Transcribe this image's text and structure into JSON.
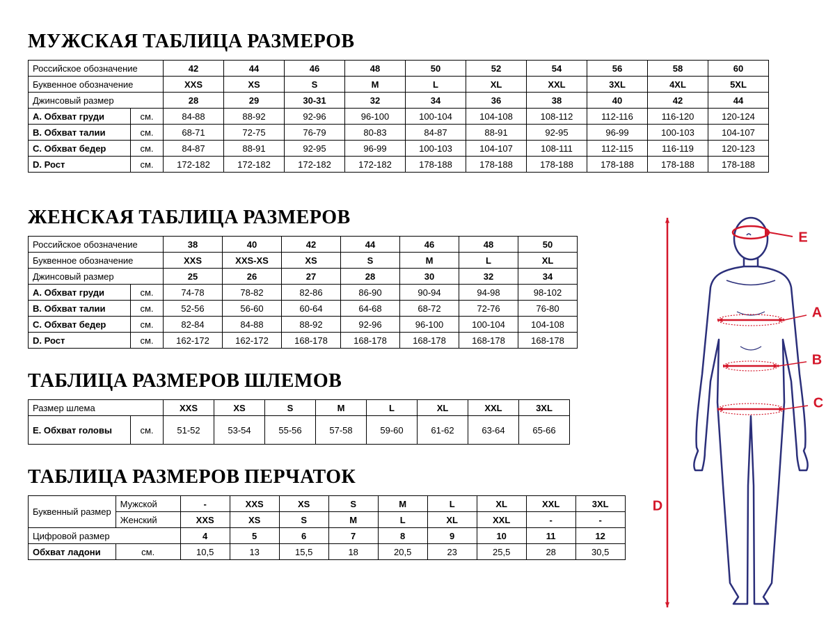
{
  "titles": {
    "men": "МУЖСКАЯ ТАБЛИЦА РАЗМЕРОВ",
    "women": "ЖЕНСКАЯ ТАБЛИЦА РАЗМЕРОВ",
    "helmet": "ТАБЛИЦА РАЗМЕРОВ ШЛЕМОВ",
    "gloves": "ТАБЛИЦА РАЗМЕРОВ ПЕРЧАТОК"
  },
  "labels": {
    "rus": "Российское обозначение",
    "letter": "Буквенное обозначение",
    "jeans": "Джинсовый размер",
    "chest": "A. Обхват груди",
    "waist": "B. Обхват талии",
    "hips": "C. Обхват бедер",
    "height": "D. Рост",
    "helmet_size": "Размер шлема",
    "head": "E. Обхват головы",
    "letter_size": "Буквенный размер",
    "male": "Мужской",
    "female": "Женский",
    "digital": "Цифровой размер",
    "palm": "Обхват ладони",
    "cm": "см."
  },
  "men": {
    "rus": [
      "42",
      "44",
      "46",
      "48",
      "50",
      "52",
      "54",
      "56",
      "58",
      "60"
    ],
    "letter": [
      "XXS",
      "XS",
      "S",
      "M",
      "L",
      "XL",
      "XXL",
      "3XL",
      "4XL",
      "5XL"
    ],
    "jeans": [
      "28",
      "29",
      "30-31",
      "32",
      "34",
      "36",
      "38",
      "40",
      "42",
      "44"
    ],
    "chest": [
      "84-88",
      "88-92",
      "92-96",
      "96-100",
      "100-104",
      "104-108",
      "108-112",
      "112-116",
      "116-120",
      "120-124"
    ],
    "waist": [
      "68-71",
      "72-75",
      "76-79",
      "80-83",
      "84-87",
      "88-91",
      "92-95",
      "96-99",
      "100-103",
      "104-107"
    ],
    "hips": [
      "84-87",
      "88-91",
      "92-95",
      "96-99",
      "100-103",
      "104-107",
      "108-111",
      "112-115",
      "116-119",
      "120-123"
    ],
    "height": [
      "172-182",
      "172-182",
      "172-182",
      "172-182",
      "178-188",
      "178-188",
      "178-188",
      "178-188",
      "178-188",
      "178-188"
    ]
  },
  "women": {
    "rus": [
      "38",
      "40",
      "42",
      "44",
      "46",
      "48",
      "50"
    ],
    "letter": [
      "XXS",
      "XXS-XS",
      "XS",
      "S",
      "M",
      "L",
      "XL"
    ],
    "jeans": [
      "25",
      "26",
      "27",
      "28",
      "30",
      "32",
      "34"
    ],
    "chest": [
      "74-78",
      "78-82",
      "82-86",
      "86-90",
      "90-94",
      "94-98",
      "98-102"
    ],
    "waist": [
      "52-56",
      "56-60",
      "60-64",
      "64-68",
      "68-72",
      "72-76",
      "76-80"
    ],
    "hips": [
      "82-84",
      "84-88",
      "88-92",
      "92-96",
      "96-100",
      "100-104",
      "104-108"
    ],
    "height": [
      "162-172",
      "162-172",
      "168-178",
      "168-178",
      "168-178",
      "168-178",
      "168-178"
    ]
  },
  "helmet": {
    "sizes": [
      "XXS",
      "XS",
      "S",
      "M",
      "L",
      "XL",
      "XXL",
      "3XL"
    ],
    "head": [
      "51-52",
      "53-54",
      "55-56",
      "57-58",
      "59-60",
      "61-62",
      "63-64",
      "65-66"
    ]
  },
  "gloves": {
    "male": [
      "-",
      "XXS",
      "XS",
      "S",
      "M",
      "L",
      "XL",
      "XXL",
      "3XL"
    ],
    "female": [
      "XXS",
      "XS",
      "S",
      "M",
      "L",
      "XL",
      "XXL",
      "-",
      "-"
    ],
    "digital": [
      "4",
      "5",
      "6",
      "7",
      "8",
      "9",
      "10",
      "11",
      "12"
    ],
    "palm": [
      "10,5",
      "13",
      "15,5",
      "18",
      "20,5",
      "23",
      "25,5",
      "28",
      "30,5"
    ]
  },
  "figure": {
    "body_color": "#2b2f7a",
    "arrow_color": "#d4172a",
    "labels": {
      "A": "A",
      "B": "B",
      "C": "C",
      "D": "D",
      "E": "E"
    }
  }
}
